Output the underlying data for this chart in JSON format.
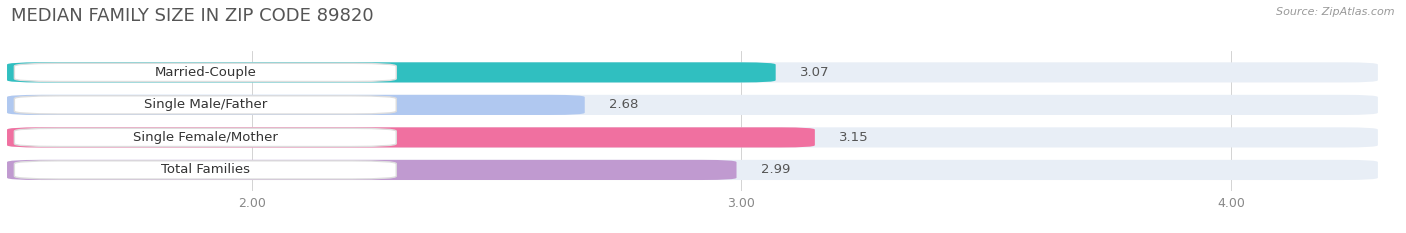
{
  "title": "MEDIAN FAMILY SIZE IN ZIP CODE 89820",
  "source_text": "Source: ZipAtlas.com",
  "categories": [
    "Married-Couple",
    "Single Male/Father",
    "Single Female/Mother",
    "Total Families"
  ],
  "values": [
    3.07,
    2.68,
    3.15,
    2.99
  ],
  "bar_colors": [
    "#30bfc0",
    "#b0c8f0",
    "#f070a0",
    "#c09ad0"
  ],
  "bar_bg_color": "#e8eef6",
  "background_color": "#ffffff",
  "xlim_left": 1.5,
  "xlim_right": 4.3,
  "xticks": [
    2.0,
    3.0,
    4.0
  ],
  "xtick_labels": [
    "2.00",
    "3.00",
    "4.00"
  ],
  "title_fontsize": 13,
  "label_fontsize": 9.5,
  "value_fontsize": 9.5,
  "bar_height": 0.62,
  "bar_gap": 0.38
}
